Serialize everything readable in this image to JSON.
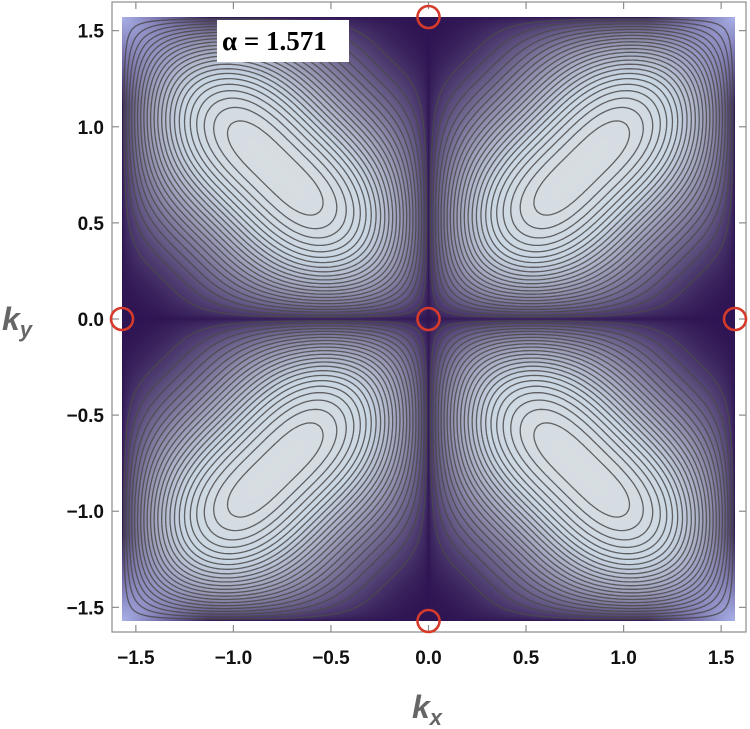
{
  "chart_data": {
    "type": "heatmap",
    "subtype": "contour",
    "annotation": "α = 1.571",
    "xlabel_main": "k",
    "xlabel_sub": "x",
    "ylabel_main": "k",
    "ylabel_sub": "y",
    "xlim": [
      -1.571,
      1.571
    ],
    "ylim": [
      -1.571,
      1.571
    ],
    "x_ticks": [
      -1.5,
      -1.0,
      -0.5,
      0.0,
      0.5,
      1.0,
      1.5
    ],
    "x_tick_labels": [
      "−1.5",
      "−1.0",
      "−0.5",
      "0.0",
      "0.5",
      "1.0",
      "1.5"
    ],
    "y_ticks": [
      1.5,
      1.0,
      0.5,
      0.0,
      -0.5,
      -1.0,
      -1.5
    ],
    "y_tick_labels": [
      "1.5",
      "1.0",
      "0.5",
      "0.0",
      "−0.5",
      "−1.0",
      "−1.5"
    ],
    "maxima": [
      {
        "x": -0.785,
        "y": 0.785
      },
      {
        "x": 0.785,
        "y": 0.785
      },
      {
        "x": -0.785,
        "y": -0.785
      },
      {
        "x": 0.785,
        "y": -0.785
      }
    ],
    "singular_points": [
      {
        "x": 0.0,
        "y": 1.571
      },
      {
        "x": -1.571,
        "y": 0.0
      },
      {
        "x": 0.0,
        "y": 0.0
      },
      {
        "x": 1.571,
        "y": 0.0
      },
      {
        "x": 0.0,
        "y": -1.571
      }
    ],
    "colors": {
      "high": "#f1ece0",
      "mid": "#c9d6e3",
      "low": "#2e1452",
      "corner": "#a9b0e8",
      "contour": "#4a4a4a",
      "marker": "#d63a2b"
    },
    "grid": false,
    "legend": "none"
  }
}
